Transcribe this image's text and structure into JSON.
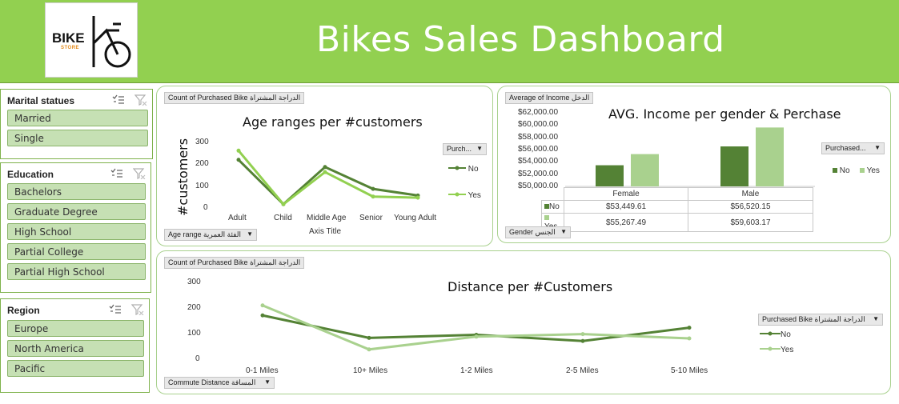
{
  "header": {
    "title": "Bikes Sales Dashboard",
    "logo_text": "BIKE",
    "logo_sub": "STORE",
    "bg": "#92d050"
  },
  "slicers": {
    "marital": {
      "title": "Marital statues",
      "items": [
        "Married",
        "Single"
      ]
    },
    "education": {
      "title": "Education",
      "items": [
        "Bachelors",
        "Graduate Degree",
        "High School",
        "Partial College",
        "Partial High School"
      ]
    },
    "region": {
      "title": "Region",
      "items": [
        "Europe",
        "North America",
        "Pacific"
      ]
    }
  },
  "age_panel": {
    "value_field": "Count of Purchased Bike الدراجة المشتراة",
    "axis_field": "Age range الفئة العمرية",
    "legend_field": "Purch...",
    "axis_title": "Axis Title"
  },
  "income_panel": {
    "value_field": "Average of Income الدخل",
    "axis_field": "Gender الجنس",
    "legend_field": "Purchased...",
    "table": {
      "row_labels": [
        "No",
        "Yes"
      ],
      "col_labels": [
        "Female",
        "Male"
      ],
      "rows": [
        [
          "$53,449.61",
          "$56,520.15"
        ],
        [
          "$55,267.49",
          "$59,603.17"
        ]
      ]
    }
  },
  "distance_panel": {
    "value_field": "Count of Purchased Bike الدراجة المشتراة",
    "axis_field": "Commute Distance المسافة",
    "legend_field": "Purchased Bike الدراجة المشتراة"
  },
  "colors": {
    "no": "#548235",
    "yes": "#a9d18e",
    "yes_line": "#92d050"
  },
  "chart_data": [
    {
      "type": "line",
      "title": "Age ranges per #customers",
      "xlabel": "Axis Title",
      "ylabel": "#customers",
      "categories": [
        "Adult",
        "Child",
        "Middle Age",
        "Senior",
        "Young Adult"
      ],
      "yticks": [
        "300",
        "200",
        "100",
        "0"
      ],
      "ylim": [
        0,
        300
      ],
      "series": [
        {
          "name": "No",
          "values": [
            213,
            10,
            180,
            80,
            50
          ]
        },
        {
          "name": "Yes",
          "values": [
            255,
            10,
            157,
            45,
            40
          ]
        }
      ],
      "grid": false,
      "legend": "right"
    },
    {
      "type": "bar",
      "title": "AVG. Income per gender & Perchase",
      "categories": [
        "Female",
        "Male"
      ],
      "yticks": [
        "$62,000.00",
        "$60,000.00",
        "$58,000.00",
        "$56,000.00",
        "$54,000.00",
        "$52,000.00",
        "$50,000.00"
      ],
      "ylim": [
        50000,
        62000
      ],
      "series": [
        {
          "name": "No",
          "values": [
            53449.61,
            56520.15
          ]
        },
        {
          "name": "Yes",
          "values": [
            55267.49,
            59603.17
          ]
        }
      ],
      "grid": false,
      "legend": "right"
    },
    {
      "type": "line",
      "title": "Distance per #Customers",
      "categories": [
        "0-1 Miles",
        "10+ Miles",
        "1-2 Miles",
        "2-5 Miles",
        "5-10 Miles"
      ],
      "yticks": [
        "300",
        "200",
        "100",
        "0"
      ],
      "ylim": [
        0,
        300
      ],
      "series": [
        {
          "name": "No",
          "values": [
            168,
            80,
            92,
            68,
            120
          ]
        },
        {
          "name": "Yes",
          "values": [
            207,
            35,
            85,
            95,
            78
          ]
        }
      ],
      "grid": false,
      "legend": "right"
    }
  ]
}
